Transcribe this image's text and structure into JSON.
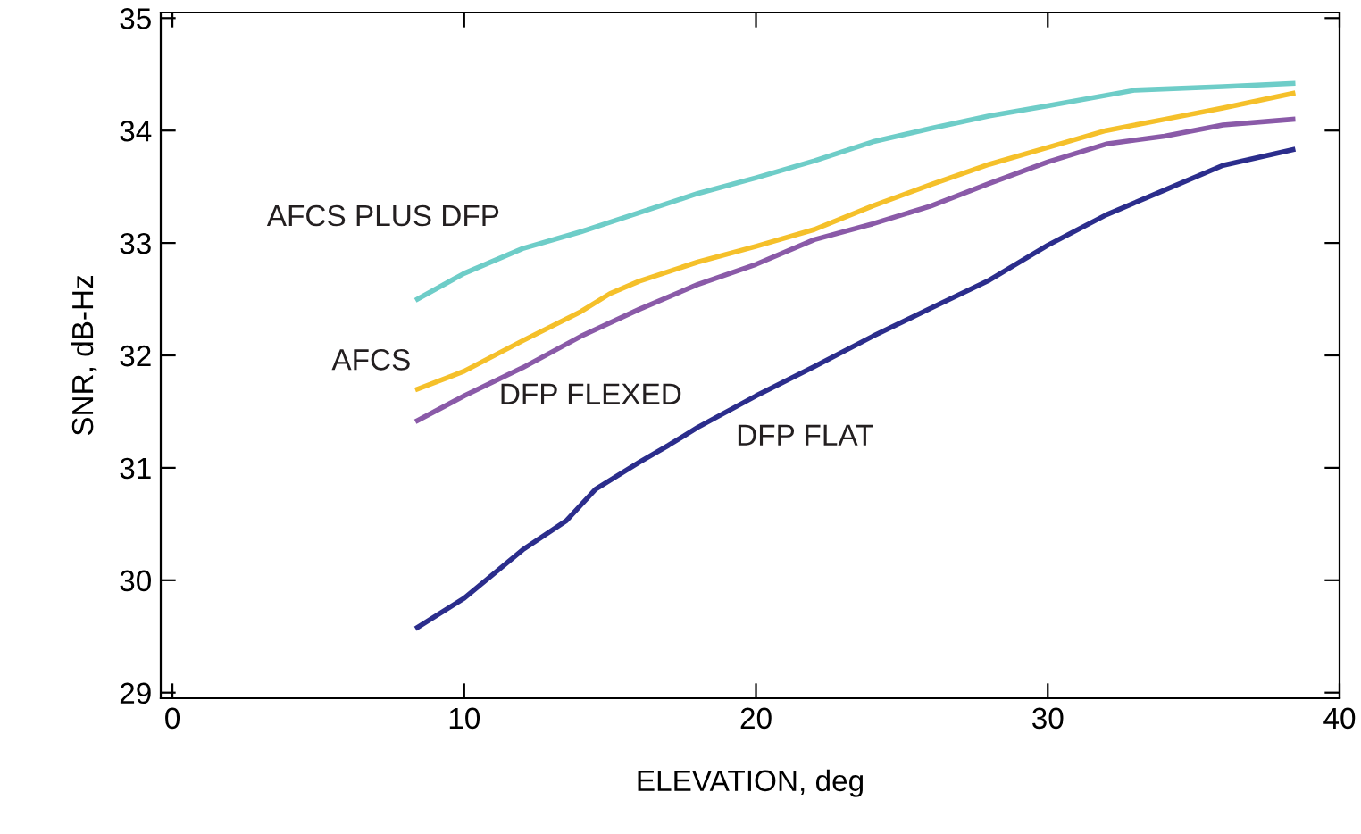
{
  "chart_data": {
    "type": "line",
    "xlabel": "ELEVATION, deg",
    "ylabel": "SNR, dB-Hz",
    "xlim": [
      -0.4,
      40
    ],
    "xticks": [
      0,
      10,
      20,
      30,
      40
    ],
    "ylim": [
      28.95,
      35.05
    ],
    "yticks": [
      29,
      30,
      31,
      32,
      33,
      34,
      35
    ],
    "grid": false,
    "legend": false,
    "marker": "none",
    "line_style": "solid",
    "series": [
      {
        "name": "AFCS PLUS DFP",
        "color": "#6ecdc8",
        "x": [
          8.4,
          10,
          12,
          14,
          16,
          18,
          20,
          22,
          24,
          26,
          28,
          30,
          33,
          36,
          38.4
        ],
        "values": [
          32.5,
          32.73,
          32.95,
          33.1,
          33.27,
          33.44,
          33.58,
          33.73,
          33.9,
          34.02,
          34.13,
          34.22,
          34.36,
          34.39,
          34.42
        ]
      },
      {
        "name": "AFCS",
        "color": "#f5c02a",
        "x": [
          8.4,
          10,
          12,
          14,
          15,
          16,
          18,
          20,
          22,
          24,
          26,
          28,
          30,
          32,
          34,
          36,
          38.4
        ],
        "values": [
          31.7,
          31.86,
          32.13,
          32.39,
          32.55,
          32.66,
          32.83,
          32.97,
          33.12,
          33.33,
          33.52,
          33.7,
          33.85,
          34.0,
          34.1,
          34.2,
          34.33
        ]
      },
      {
        "name": "DFP FLEXED",
        "color": "#8a5aa8",
        "x": [
          8.4,
          10,
          12,
          14,
          16,
          18,
          20,
          22,
          24,
          26,
          28,
          30,
          32,
          34,
          36,
          38.4
        ],
        "values": [
          31.42,
          31.64,
          31.89,
          32.17,
          32.41,
          32.63,
          32.81,
          33.03,
          33.17,
          33.33,
          33.53,
          33.72,
          33.88,
          33.95,
          34.05,
          34.1
        ]
      },
      {
        "name": "DFP FLAT",
        "color": "#2b2d8c",
        "x": [
          8.4,
          10,
          12,
          13.5,
          14.5,
          16,
          17,
          18,
          20,
          22,
          24,
          26,
          28,
          30,
          32,
          34,
          36,
          38.4
        ],
        "values": [
          29.58,
          29.84,
          30.27,
          30.53,
          30.81,
          31.05,
          31.2,
          31.36,
          31.64,
          31.9,
          32.17,
          32.42,
          32.67,
          32.98,
          33.25,
          33.47,
          33.69,
          33.83
        ]
      }
    ]
  }
}
